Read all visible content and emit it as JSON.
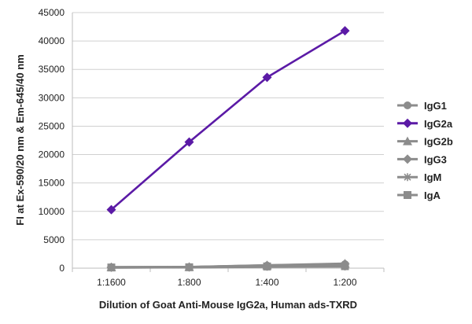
{
  "chart_data": {
    "type": "line",
    "title": "",
    "xlabel": "Dilution of Goat Anti-Mouse IgG2a, Human ads-TXRD",
    "ylabel": "FI at Ex-590/20 nm & Em-645/40 nm",
    "categories": [
      "1:1600",
      "1:800",
      "1:400",
      "1:200"
    ],
    "ylim": [
      0,
      45000
    ],
    "yticks": [
      0,
      5000,
      10000,
      15000,
      20000,
      25000,
      30000,
      35000,
      40000,
      45000
    ],
    "grid": true,
    "legend_position": "right",
    "series": [
      {
        "name": "IgG1",
        "values": [
          150,
          180,
          450,
          700
        ],
        "color": "#8c8c8c",
        "marker": "circle"
      },
      {
        "name": "IgG2a",
        "values": [
          10300,
          22200,
          33600,
          41800
        ],
        "color": "#5b1aa6",
        "marker": "diamond"
      },
      {
        "name": "IgG2b",
        "values": [
          180,
          200,
          500,
          800
        ],
        "color": "#8c8c8c",
        "marker": "triangle"
      },
      {
        "name": "IgG3",
        "values": [
          160,
          190,
          480,
          750
        ],
        "color": "#8c8c8c",
        "marker": "diamond"
      },
      {
        "name": "IgM",
        "values": [
          100,
          150,
          250,
          300
        ],
        "color": "#8c8c8c",
        "marker": "star"
      },
      {
        "name": "IgA",
        "values": [
          120,
          160,
          300,
          350
        ],
        "color": "#8c8c8c",
        "marker": "square"
      }
    ]
  }
}
